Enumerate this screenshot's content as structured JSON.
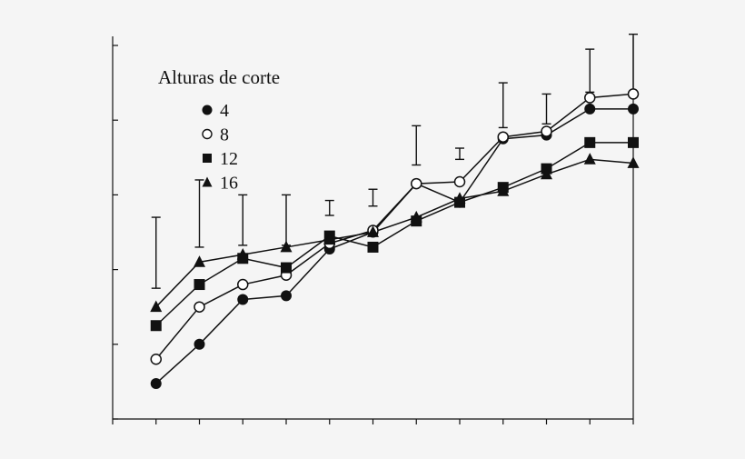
{
  "chart_data": {
    "type": "line",
    "x": [
      1,
      2,
      3,
      4,
      5,
      6,
      7,
      8,
      9,
      10,
      11,
      12
    ],
    "xlim": [
      0,
      12
    ],
    "ylim": [
      0,
      100
    ],
    "grid": false,
    "legend": {
      "title": "Alturas de corte",
      "placement": "top-left"
    },
    "series": [
      {
        "name": "4",
        "marker": "filled-circle",
        "values": [
          9.5,
          20,
          32,
          33,
          45.5,
          50,
          63,
          58,
          75,
          76,
          83,
          83
        ]
      },
      {
        "name": "8",
        "marker": "open-circle",
        "values": [
          16,
          30,
          36,
          38.5,
          47,
          50.5,
          63,
          63.5,
          75.5,
          77,
          86,
          87
        ]
      },
      {
        "name": "12",
        "marker": "filled-square",
        "values": [
          25,
          36,
          43,
          40.5,
          49,
          46,
          53,
          58,
          62,
          67,
          74,
          74
        ]
      },
      {
        "name": "16",
        "marker": "filled-triangle",
        "values": [
          30,
          42,
          44,
          46,
          48,
          50,
          54,
          59,
          61,
          65.5,
          69.5,
          68.5
        ]
      }
    ],
    "error_bars": [
      {
        "x": 1,
        "low": 35,
        "high": 54
      },
      {
        "x": 2,
        "low": 46,
        "high": 64
      },
      {
        "x": 3,
        "low": 46.5,
        "high": 60
      },
      {
        "x": 4,
        "low": 46.5,
        "high": 60
      },
      {
        "x": 5,
        "low": 54.5,
        "high": 58.5
      },
      {
        "x": 6,
        "low": 57,
        "high": 61.5
      },
      {
        "x": 7,
        "low": 68,
        "high": 78.5
      },
      {
        "x": 8,
        "low": 69.5,
        "high": 72.5
      },
      {
        "x": 9,
        "low": 78,
        "high": 90
      },
      {
        "x": 10,
        "low": 79,
        "high": 87
      },
      {
        "x": 11,
        "low": 87.5,
        "high": 99
      },
      {
        "x": 12,
        "low": 87.5,
        "high": 103
      }
    ],
    "colors": {
      "ink": "#111111",
      "background": "#f5f5f5",
      "marker_fill_open": "#ffffff"
    }
  }
}
